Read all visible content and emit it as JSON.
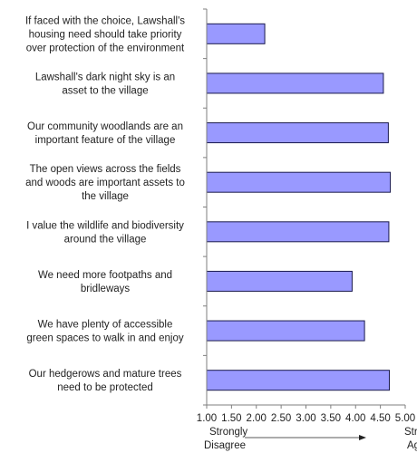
{
  "chart_data": {
    "type": "bar",
    "orientation": "horizontal",
    "categories": [
      "If faced with the choice, Lawshall's housing need should take priority over protection of the environment",
      "Lawshall's dark night sky is an asset to the village",
      "Our community woodlands are an important feature of the village",
      "The open views across the fields and woods are important assets to the village",
      "I value the wildlife and biodiversity around the village",
      "We need more footpaths and bridleways",
      "We have plenty of accessible green spaces to walk in and enjoy",
      "Our hedgerows and mature trees need to be protected"
    ],
    "category_lines": [
      [
        "If faced with the choice, Lawshall's",
        "housing need should take priority",
        "over protection of the environment"
      ],
      [
        "Lawshall's dark night sky is an",
        "asset to the village"
      ],
      [
        "Our community woodlands are an",
        "important feature of the village"
      ],
      [
        "The open views across the fields",
        "and woods are important assets to",
        "the village"
      ],
      [
        "I value the wildlife and biodiversity",
        "around the village"
      ],
      [
        "We need more footpaths and",
        "bridleways"
      ],
      [
        "We have plenty of accessible",
        "green spaces to walk in and enjoy"
      ],
      [
        "Our hedgerows and mature trees",
        "need to be protected"
      ]
    ],
    "values": [
      2.17,
      4.56,
      4.66,
      4.7,
      4.67,
      3.93,
      4.18,
      4.68
    ],
    "xlim": [
      1.0,
      5.0
    ],
    "xticks": [
      "1.00",
      "1.50",
      "2.00",
      "2.50",
      "3.00",
      "3.50",
      "4.00",
      "4.50",
      "5.00"
    ],
    "xtick_values": [
      1.0,
      1.5,
      2.0,
      2.5,
      3.0,
      3.5,
      4.0,
      4.5,
      5.0
    ],
    "scale_low_label": [
      "Strongly",
      "Disagree"
    ],
    "scale_high_label": [
      "Strongly",
      "Agree"
    ],
    "bar_color": "#9999ff",
    "bar_edge_color": "#1a1a4d",
    "axis_color": "#7f7f7f",
    "grid": false,
    "legend": "none"
  }
}
